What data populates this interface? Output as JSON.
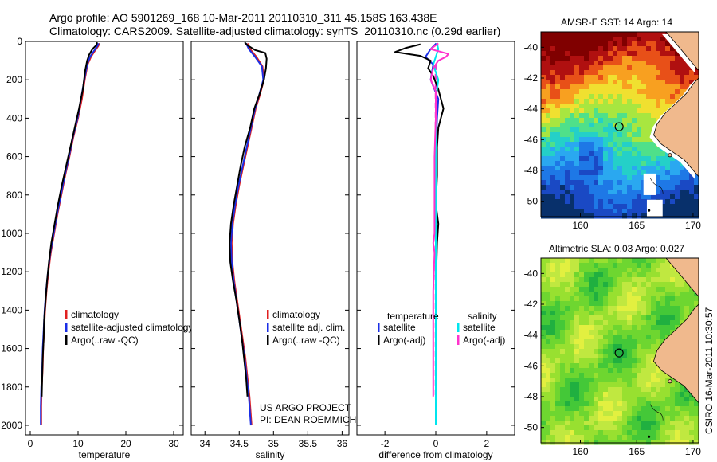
{
  "header": {
    "line1": "Argo profile: AO 5901269_168 10-Mar-2011 20110310_311 45.158S 163.438E",
    "line2": "Climatology: CARS2009. Satellite-adjusted climatology: synTS_20110310.nc (0.29d earlier)"
  },
  "credit": "CSIRO 16-Mar-2011 10:30:57",
  "project_note": {
    "line1": "US ARGO PROJECT",
    "line2": "PI: DEAN ROEMMICH"
  },
  "colors": {
    "climatology": "#e02020",
    "satellite": "#1a2ee6",
    "argo": "#000000",
    "satellite_sal": "#00e5ee",
    "argo_sal": "#ff33cc",
    "land": "#f0b98d"
  },
  "chart_data": [
    {
      "type": "line",
      "id": "temperature",
      "xlabel": "temperature",
      "ylabel": "",
      "xlim": [
        -1,
        32
      ],
      "ylim": [
        2050,
        0
      ],
      "xticks": [
        0,
        10,
        20,
        30
      ],
      "yticks": [
        0,
        200,
        400,
        600,
        800,
        1000,
        1200,
        1400,
        1600,
        1800,
        2000
      ],
      "legend": [
        "climatology",
        "satellite-adjusted climatology",
        "Argo(..raw -QC)"
      ],
      "series": [
        {
          "name": "climatology",
          "color": "climatology",
          "points": [
            [
              14.5,
              10
            ],
            [
              14.2,
              25
            ],
            [
              13.5,
              50
            ],
            [
              12.7,
              80
            ],
            [
              12.0,
              120
            ],
            [
              11.4,
              200
            ],
            [
              10.8,
              300
            ],
            [
              10.0,
              400
            ],
            [
              9.0,
              500
            ],
            [
              8.2,
              600
            ],
            [
              7.3,
              700
            ],
            [
              6.5,
              800
            ],
            [
              5.7,
              900
            ],
            [
              5.0,
              1000
            ],
            [
              4.3,
              1100
            ],
            [
              3.8,
              1200
            ],
            [
              3.4,
              1300
            ],
            [
              3.1,
              1400
            ],
            [
              2.9,
              1500
            ],
            [
              2.7,
              1600
            ],
            [
              2.6,
              1700
            ],
            [
              2.4,
              1800
            ],
            [
              2.3,
              1900
            ],
            [
              2.3,
              2000
            ]
          ]
        },
        {
          "name": "satellite-adjusted climatology",
          "color": "satellite",
          "points": [
            [
              14.3,
              10
            ],
            [
              14.0,
              25
            ],
            [
              13.3,
              50
            ],
            [
              12.5,
              80
            ],
            [
              11.9,
              120
            ],
            [
              11.3,
              200
            ],
            [
              10.6,
              300
            ],
            [
              9.9,
              400
            ],
            [
              8.9,
              500
            ],
            [
              8.1,
              600
            ],
            [
              7.2,
              700
            ],
            [
              6.4,
              800
            ],
            [
              5.6,
              900
            ],
            [
              4.9,
              1000
            ],
            [
              4.2,
              1100
            ],
            [
              3.7,
              1200
            ],
            [
              3.3,
              1300
            ],
            [
              3.0,
              1400
            ],
            [
              2.8,
              1500
            ],
            [
              2.6,
              1600
            ],
            [
              2.5,
              1700
            ],
            [
              2.3,
              1800
            ],
            [
              2.2,
              1900
            ],
            [
              2.2,
              2000
            ]
          ]
        },
        {
          "name": "Argo(..raw -QC)",
          "color": "argo",
          "points": [
            [
              14.0,
              5
            ],
            [
              13.8,
              20
            ],
            [
              13.0,
              40
            ],
            [
              12.3,
              70
            ],
            [
              11.9,
              100
            ],
            [
              11.5,
              150
            ],
            [
              11.0,
              250
            ],
            [
              10.2,
              350
            ],
            [
              9.3,
              450
            ],
            [
              8.4,
              550
            ],
            [
              7.5,
              650
            ],
            [
              6.6,
              750
            ],
            [
              5.8,
              850
            ],
            [
              5.1,
              950
            ],
            [
              4.4,
              1050
            ],
            [
              3.9,
              1150
            ],
            [
              3.5,
              1250
            ],
            [
              3.2,
              1350
            ],
            [
              2.9,
              1450
            ],
            [
              2.8,
              1550
            ],
            [
              2.6,
              1650
            ],
            [
              2.5,
              1750
            ],
            [
              2.4,
              1850
            ]
          ]
        }
      ]
    },
    {
      "type": "line",
      "id": "salinity",
      "xlabel": "salinity",
      "ylabel": "",
      "xlim": [
        33.8,
        36.1
      ],
      "ylim": [
        2050,
        0
      ],
      "xticks": [
        34,
        34.5,
        35,
        35.5,
        36
      ],
      "legend": [
        "climatology",
        "satellite adj. clim.",
        "Argo(..raw -QC)"
      ],
      "series": [
        {
          "name": "climatology",
          "color": "climatology",
          "points": [
            [
              34.62,
              10
            ],
            [
              34.66,
              40
            ],
            [
              34.75,
              80
            ],
            [
              34.84,
              130
            ],
            [
              34.86,
              200
            ],
            [
              34.8,
              280
            ],
            [
              34.74,
              350
            ],
            [
              34.68,
              450
            ],
            [
              34.62,
              550
            ],
            [
              34.56,
              650
            ],
            [
              34.5,
              750
            ],
            [
              34.45,
              850
            ],
            [
              34.41,
              950
            ],
            [
              34.39,
              1050
            ],
            [
              34.4,
              1150
            ],
            [
              34.43,
              1250
            ],
            [
              34.47,
              1350
            ],
            [
              34.51,
              1450
            ],
            [
              34.55,
              1550
            ],
            [
              34.59,
              1650
            ],
            [
              34.62,
              1750
            ],
            [
              34.65,
              1850
            ],
            [
              34.68,
              2000
            ]
          ]
        },
        {
          "name": "satellite adj. clim.",
          "color": "satellite",
          "points": [
            [
              34.6,
              10
            ],
            [
              34.64,
              40
            ],
            [
              34.73,
              80
            ],
            [
              34.83,
              130
            ],
            [
              34.85,
              200
            ],
            [
              34.79,
              280
            ],
            [
              34.73,
              350
            ],
            [
              34.67,
              450
            ],
            [
              34.61,
              550
            ],
            [
              34.55,
              650
            ],
            [
              34.49,
              750
            ],
            [
              34.44,
              850
            ],
            [
              34.4,
              950
            ],
            [
              34.38,
              1050
            ],
            [
              34.39,
              1150
            ],
            [
              34.42,
              1250
            ],
            [
              34.46,
              1350
            ],
            [
              34.5,
              1450
            ],
            [
              34.54,
              1550
            ],
            [
              34.58,
              1650
            ],
            [
              34.61,
              1750
            ],
            [
              34.64,
              1850
            ],
            [
              34.67,
              2000
            ]
          ]
        },
        {
          "name": "Argo(..raw -QC)",
          "color": "argo",
          "points": [
            [
              34.58,
              5
            ],
            [
              34.62,
              20
            ],
            [
              34.73,
              45
            ],
            [
              34.88,
              60
            ],
            [
              34.9,
              90
            ],
            [
              34.89,
              140
            ],
            [
              34.86,
              200
            ],
            [
              34.8,
              270
            ],
            [
              34.72,
              350
            ],
            [
              34.66,
              450
            ],
            [
              34.58,
              550
            ],
            [
              34.52,
              650
            ],
            [
              34.47,
              750
            ],
            [
              34.42,
              850
            ],
            [
              34.38,
              950
            ],
            [
              34.36,
              1050
            ],
            [
              34.37,
              1150
            ],
            [
              34.41,
              1250
            ],
            [
              34.46,
              1350
            ],
            [
              34.5,
              1450
            ],
            [
              34.54,
              1550
            ],
            [
              34.57,
              1650
            ],
            [
              34.6,
              1750
            ],
            [
              34.62,
              1850
            ]
          ]
        }
      ]
    },
    {
      "type": "line",
      "id": "difference",
      "xlabel": "difference from climatology",
      "ylabel": "",
      "xlim": [
        -3.1,
        3.1
      ],
      "ylim": [
        2050,
        0
      ],
      "xticks": [
        -2,
        0,
        2
      ],
      "legend": [
        "temperature",
        "satellite",
        "Argo(-adj)",
        "salinity",
        "satellite",
        "Argo(-adj)"
      ],
      "series": [
        {
          "name": "temperature satellite",
          "color": "satellite",
          "points": [
            [
              0.02,
              10
            ],
            [
              -0.2,
              40
            ],
            [
              -0.4,
              80
            ],
            [
              -0.1,
              120
            ],
            [
              -0.2,
              200
            ],
            [
              0.1,
              300
            ],
            [
              0.05,
              400
            ],
            [
              0.0,
              600
            ],
            [
              0.0,
              1000
            ],
            [
              0.0,
              1500
            ],
            [
              0.0,
              2000
            ]
          ]
        },
        {
          "name": "temperature Argo(-adj)",
          "color": "argo",
          "points": [
            [
              -0.6,
              15
            ],
            [
              -1.2,
              35
            ],
            [
              -1.6,
              55
            ],
            [
              -0.6,
              75
            ],
            [
              -0.2,
              100
            ],
            [
              -0.3,
              140
            ],
            [
              -0.1,
              180
            ],
            [
              0.1,
              250
            ],
            [
              0.3,
              350
            ],
            [
              0.1,
              450
            ],
            [
              0.05,
              550
            ],
            [
              0.05,
              700
            ],
            [
              0.0,
              850
            ],
            [
              0.1,
              950
            ],
            [
              0.05,
              1050
            ],
            [
              0.0,
              1300
            ],
            [
              0.0,
              1600
            ],
            [
              0.0,
              1850
            ]
          ]
        },
        {
          "name": "salinity satellite",
          "color": "satellite_sal",
          "points": [
            [
              0.05,
              10
            ],
            [
              0.1,
              40
            ],
            [
              0.0,
              80
            ],
            [
              -0.1,
              120
            ],
            [
              0.1,
              200
            ],
            [
              0.0,
              300
            ],
            [
              0.0,
              600
            ],
            [
              0.0,
              1000
            ],
            [
              0.0,
              1500
            ],
            [
              0.0,
              2000
            ]
          ]
        },
        {
          "name": "salinity Argo(-adj)",
          "color": "argo_sal",
          "points": [
            [
              0.1,
              10
            ],
            [
              -0.2,
              40
            ],
            [
              0.5,
              65
            ],
            [
              0.4,
              80
            ],
            [
              0.1,
              100
            ],
            [
              -0.1,
              140
            ],
            [
              -0.2,
              200
            ],
            [
              0.0,
              260
            ],
            [
              0.0,
              400
            ],
            [
              -0.05,
              600
            ],
            [
              -0.05,
              800
            ],
            [
              -0.05,
              1000
            ],
            [
              -0.1,
              1050
            ],
            [
              -0.05,
              1100
            ],
            [
              -0.1,
              1300
            ],
            [
              -0.1,
              1600
            ],
            [
              -0.1,
              1850
            ]
          ]
        }
      ]
    },
    {
      "type": "heatmap",
      "id": "sst_map",
      "title": "AMSR-E SST: 14 Argo: 14",
      "xlim": [
        156.5,
        170.5
      ],
      "ylim": [
        -51,
        -39
      ],
      "xticks": [
        160,
        165,
        170
      ],
      "yticks": [
        -40,
        -42,
        -44,
        -46,
        -48,
        -50
      ],
      "marker": {
        "lon": 163.44,
        "lat": -45.16
      },
      "colors": [
        "#08306b",
        "#1a49c4",
        "#1e78e6",
        "#2aa8f0",
        "#24d0c8",
        "#4fe08a",
        "#a8e640",
        "#f0e030",
        "#f8a020",
        "#e85018",
        "#b01010",
        "#800000"
      ]
    },
    {
      "type": "heatmap",
      "id": "sla_map",
      "title": "Altimetric SLA: 0.03 Argo: 0.027",
      "xlim": [
        156.5,
        170.5
      ],
      "ylim": [
        -51,
        -39
      ],
      "xticks": [
        160,
        165,
        170
      ],
      "yticks": [
        -40,
        -42,
        -44,
        -46,
        -48,
        -50
      ],
      "marker": {
        "lon": 163.44,
        "lat": -45.16
      },
      "colors": [
        "#20b040",
        "#44c838",
        "#6ed630",
        "#98e030",
        "#c0e840",
        "#e2f040"
      ]
    }
  ]
}
